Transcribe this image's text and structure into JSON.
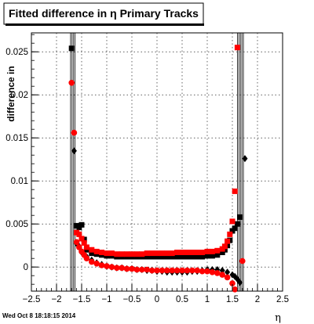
{
  "chart_data": {
    "type": "scatter",
    "title": "Fitted difference in  η  Primary Tracks",
    "xlabel": "η",
    "ylabel": "difference in",
    "xlim": [
      -2.5,
      2.5
    ],
    "ylim": [
      -0.0028,
      0.0272
    ],
    "x_ticks": [
      -2.5,
      -2,
      -1.5,
      -1,
      -0.5,
      0,
      0.5,
      1,
      1.5,
      2,
      2.5
    ],
    "x_tick_labels": [
      "−2.5",
      "−2",
      "−1.5",
      "−1",
      "−0.5",
      "0",
      "0.5",
      "1",
      "1.5",
      "2",
      "2.5"
    ],
    "y_ticks": [
      0,
      0.005,
      0.01,
      0.015,
      0.02,
      0.025
    ],
    "y_tick_labels": [
      "0",
      "0.005",
      "0.01",
      "0.015",
      "0.02",
      "0.025"
    ],
    "grid": true,
    "colors": {
      "series_a": "#000000",
      "series_b": "#ff0000"
    },
    "series": [
      {
        "name": "",
        "marker": "square",
        "color": "#000000",
        "points": [
          [
            -1.7,
            0.0254
          ],
          [
            -1.6,
            0.0048
          ],
          [
            -1.55,
            0.0046
          ],
          [
            -1.5,
            0.0049
          ],
          [
            -1.45,
            0.0032
          ],
          [
            -1.4,
            0.002
          ],
          [
            -1.3,
            0.0016
          ],
          [
            -1.2,
            0.0015
          ],
          [
            -1.1,
            0.0014
          ],
          [
            -1.0,
            0.0013
          ],
          [
            -0.9,
            0.0013
          ],
          [
            -0.8,
            0.0012
          ],
          [
            -0.7,
            0.0012
          ],
          [
            -0.6,
            0.0012
          ],
          [
            -0.5,
            0.0012
          ],
          [
            -0.4,
            0.0012
          ],
          [
            -0.3,
            0.0012
          ],
          [
            -0.2,
            0.0012
          ],
          [
            -0.1,
            0.0012
          ],
          [
            0.0,
            0.0012
          ],
          [
            0.1,
            0.0012
          ],
          [
            0.2,
            0.0012
          ],
          [
            0.3,
            0.0012
          ],
          [
            0.4,
            0.0012
          ],
          [
            0.5,
            0.0012
          ],
          [
            0.6,
            0.0012
          ],
          [
            0.7,
            0.0012
          ],
          [
            0.8,
            0.0012
          ],
          [
            0.9,
            0.0012
          ],
          [
            1.0,
            0.0013
          ],
          [
            1.1,
            0.0013
          ],
          [
            1.2,
            0.0014
          ],
          [
            1.3,
            0.0017
          ],
          [
            1.35,
            0.002
          ],
          [
            1.4,
            0.0025
          ],
          [
            1.45,
            0.0031
          ],
          [
            1.5,
            0.0042
          ],
          [
            1.55,
            0.0045
          ],
          [
            1.6,
            0.005
          ],
          [
            1.65,
            0.0058
          ]
        ]
      },
      {
        "name": "",
        "marker": "square",
        "color": "#ff0000",
        "points": [
          [
            -1.6,
            0.004
          ],
          [
            -1.55,
            0.0038
          ],
          [
            -1.5,
            0.0033
          ],
          [
            -1.45,
            0.0028
          ],
          [
            -1.4,
            0.0023
          ],
          [
            -1.3,
            0.002
          ],
          [
            -1.2,
            0.0018
          ],
          [
            -1.1,
            0.0017
          ],
          [
            -1.0,
            0.0016
          ],
          [
            -0.9,
            0.0016
          ],
          [
            -0.8,
            0.0015
          ],
          [
            -0.7,
            0.0015
          ],
          [
            -0.6,
            0.0015
          ],
          [
            -0.5,
            0.0015
          ],
          [
            -0.4,
            0.0015
          ],
          [
            -0.3,
            0.0015
          ],
          [
            -0.2,
            0.0016
          ],
          [
            -0.1,
            0.0016
          ],
          [
            0.0,
            0.0016
          ],
          [
            0.1,
            0.0016
          ],
          [
            0.2,
            0.0016
          ],
          [
            0.3,
            0.0016
          ],
          [
            0.4,
            0.0017
          ],
          [
            0.5,
            0.0017
          ],
          [
            0.6,
            0.0017
          ],
          [
            0.7,
            0.0017
          ],
          [
            0.8,
            0.0017
          ],
          [
            0.9,
            0.0017
          ],
          [
            1.0,
            0.0018
          ],
          [
            1.1,
            0.0018
          ],
          [
            1.2,
            0.0019
          ],
          [
            1.3,
            0.0021
          ],
          [
            1.35,
            0.0024
          ],
          [
            1.4,
            0.003
          ],
          [
            1.45,
            0.0038
          ],
          [
            1.5,
            0.0053
          ],
          [
            1.55,
            0.0088
          ],
          [
            1.6,
            0.0255
          ]
        ]
      },
      {
        "name": "",
        "marker": "diamond",
        "color": "#000000",
        "points": [
          [
            -1.65,
            0.0135
          ],
          [
            -1.6,
            0.0027
          ],
          [
            -1.55,
            0.0024
          ],
          [
            -1.5,
            0.0017
          ],
          [
            -1.45,
            0.0015
          ],
          [
            -1.4,
            0.0012
          ],
          [
            -1.3,
            0.0008
          ],
          [
            -1.2,
            0.0005
          ],
          [
            -1.1,
            0.0003
          ],
          [
            -1.0,
            0.0001
          ],
          [
            -0.9,
            0.0
          ],
          [
            -0.8,
            -0.0001
          ],
          [
            -0.7,
            -0.0001
          ],
          [
            -0.6,
            -0.0002
          ],
          [
            -0.5,
            -0.0002
          ],
          [
            -0.4,
            -0.0003
          ],
          [
            -0.3,
            -0.0003
          ],
          [
            -0.2,
            -0.0004
          ],
          [
            -0.1,
            -0.0004
          ],
          [
            0.0,
            -0.0005
          ],
          [
            0.1,
            -0.0005
          ],
          [
            0.2,
            -0.0006
          ],
          [
            0.3,
            -0.0006
          ],
          [
            0.4,
            -0.0006
          ],
          [
            0.5,
            -0.0006
          ],
          [
            0.6,
            -0.0006
          ],
          [
            0.7,
            -0.0005
          ],
          [
            0.8,
            -0.0005
          ],
          [
            0.9,
            -0.0004
          ],
          [
            1.0,
            -0.0003
          ],
          [
            1.1,
            -0.0003
          ],
          [
            1.2,
            -0.0003
          ],
          [
            1.3,
            -0.0004
          ],
          [
            1.4,
            -0.0006
          ],
          [
            1.5,
            -0.0009
          ],
          [
            1.55,
            -0.0011
          ],
          [
            1.6,
            -0.0014
          ],
          [
            1.65,
            -0.0018
          ],
          [
            1.75,
            0.0126
          ]
        ]
      },
      {
        "name": "",
        "marker": "circle",
        "color": "#ff0000",
        "points": [
          [
            -1.7,
            0.0214
          ],
          [
            -1.65,
            0.0156
          ],
          [
            -1.6,
            0.0029
          ],
          [
            -1.55,
            0.0023
          ],
          [
            -1.5,
            0.0018
          ],
          [
            -1.45,
            0.0014
          ],
          [
            -1.4,
            0.001
          ],
          [
            -1.3,
            0.0006
          ],
          [
            -1.2,
            0.0004
          ],
          [
            -1.1,
            0.0002
          ],
          [
            -1.0,
            0.0001
          ],
          [
            -0.9,
            0.0
          ],
          [
            -0.8,
            -0.0001
          ],
          [
            -0.7,
            -0.0001
          ],
          [
            -0.6,
            -0.0002
          ],
          [
            -0.5,
            -0.0002
          ],
          [
            -0.4,
            -0.0003
          ],
          [
            -0.3,
            -0.0003
          ],
          [
            -0.2,
            -0.0003
          ],
          [
            -0.1,
            -0.0004
          ],
          [
            0.0,
            -0.0004
          ],
          [
            0.1,
            -0.0004
          ],
          [
            0.2,
            -0.0004
          ],
          [
            0.3,
            -0.0004
          ],
          [
            0.4,
            -0.0004
          ],
          [
            0.5,
            -0.0004
          ],
          [
            0.6,
            -0.0004
          ],
          [
            0.7,
            -0.0004
          ],
          [
            0.8,
            -0.0004
          ],
          [
            0.9,
            -0.0005
          ],
          [
            1.0,
            -0.0005
          ],
          [
            1.1,
            -0.0006
          ],
          [
            1.2,
            -0.0007
          ],
          [
            1.3,
            -0.0009
          ],
          [
            1.4,
            -0.0012
          ],
          [
            1.5,
            -0.0019
          ],
          [
            1.55,
            -0.0026
          ],
          [
            1.7,
            0.0007
          ]
        ]
      }
    ],
    "vertical_lines_x": [
      -1.72,
      -1.69,
      -1.66,
      -1.63,
      1.6,
      1.63,
      1.66,
      1.69,
      1.72
    ]
  },
  "footer_text": "Wed Oct  8 18:18:15 2014"
}
